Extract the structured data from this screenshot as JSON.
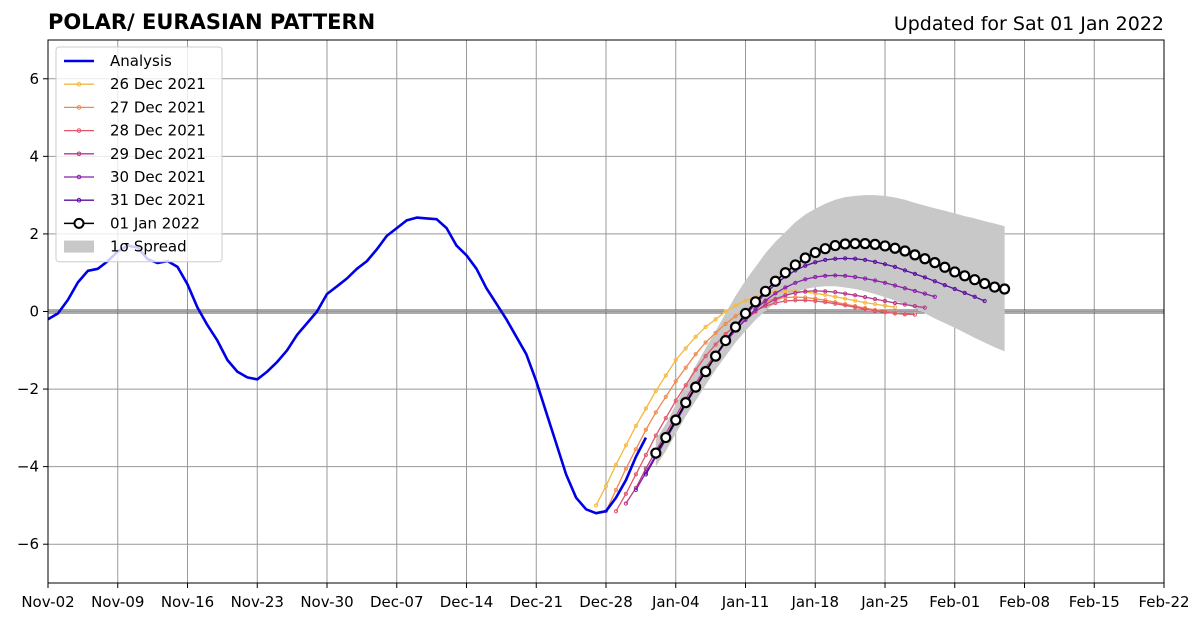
{
  "header": {
    "title": "POLAR/ EURASIAN  PATTERN",
    "updated": "Updated for Sat 01 Jan 2022"
  },
  "colors": {
    "analysis": "#0000e6",
    "spread": "#c8c8c8",
    "dec26": "#f5b940",
    "dec27": "#f08a4b",
    "dec28": "#e0566a",
    "dec29": "#b8378a",
    "dec30": "#8a1fa8",
    "dec31": "#5a0fa0",
    "jan01": "#000000",
    "grid": "#999999",
    "zero_line": "#555555"
  },
  "chart_data": {
    "type": "line",
    "title": "POLAR/ EURASIAN  PATTERN",
    "subtitle": "Updated for Sat 01 Jan 2022",
    "xlabel": "",
    "ylabel": "",
    "x_unit": "days since Nov-02",
    "xlim": [
      0,
      112
    ],
    "ylim": [
      -7,
      7
    ],
    "grid": true,
    "legend_position": "top-left",
    "x_ticks": [
      {
        "label": "Nov-02",
        "x": 0
      },
      {
        "label": "Nov-09",
        "x": 7
      },
      {
        "label": "Nov-16",
        "x": 14
      },
      {
        "label": "Nov-23",
        "x": 21
      },
      {
        "label": "Nov-30",
        "x": 28
      },
      {
        "label": "Dec-07",
        "x": 35
      },
      {
        "label": "Dec-14",
        "x": 42
      },
      {
        "label": "Dec-21",
        "x": 49
      },
      {
        "label": "Dec-28",
        "x": 56
      },
      {
        "label": "Jan-04",
        "x": 63
      },
      {
        "label": "Jan-11",
        "x": 70
      },
      {
        "label": "Jan-18",
        "x": 77
      },
      {
        "label": "Jan-25",
        "x": 84
      },
      {
        "label": "Feb-01",
        "x": 91
      },
      {
        "label": "Feb-08",
        "x": 98
      },
      {
        "label": "Feb-15",
        "x": 105
      },
      {
        "label": "Feb-22",
        "x": 112
      }
    ],
    "y_ticks": [
      {
        "label": "−6",
        "y": -6
      },
      {
        "label": "−4",
        "y": -4
      },
      {
        "label": "−2",
        "y": -2
      },
      {
        "label": "0",
        "y": 0
      },
      {
        "label": "2",
        "y": 2
      },
      {
        "label": "4",
        "y": 4
      },
      {
        "label": "6",
        "y": 6
      }
    ],
    "analysis": {
      "name": "Analysis",
      "x": [
        0,
        1,
        2,
        3,
        4,
        5,
        6,
        7,
        8,
        9,
        10,
        11,
        12,
        13,
        14,
        15,
        16,
        17,
        18,
        19,
        20,
        21,
        22,
        23,
        24,
        25,
        26,
        27,
        28,
        29,
        30,
        31,
        32,
        33,
        34,
        35,
        36,
        37,
        38,
        39,
        40,
        41,
        42,
        43,
        44,
        45,
        46,
        47,
        48,
        49,
        50,
        51,
        52,
        53,
        54,
        55,
        56,
        57,
        58,
        59,
        60
      ],
      "y": [
        -0.2,
        -0.05,
        0.3,
        0.75,
        1.05,
        1.1,
        1.3,
        1.55,
        1.7,
        1.65,
        1.35,
        1.25,
        1.3,
        1.15,
        0.7,
        0.1,
        -0.35,
        -0.75,
        -1.25,
        -1.55,
        -1.7,
        -1.75,
        -1.55,
        -1.3,
        -1.0,
        -0.6,
        -0.3,
        0.0,
        0.45,
        0.65,
        0.85,
        1.1,
        1.3,
        1.6,
        1.95,
        2.15,
        2.35,
        2.42,
        2.4,
        2.38,
        2.15,
        1.7,
        1.45,
        1.1,
        0.6,
        0.2,
        -0.2,
        -0.65,
        -1.1,
        -1.8,
        -2.6,
        -3.4,
        -4.2,
        -4.8,
        -5.1,
        -5.2,
        -5.15,
        -4.8,
        -4.35,
        -3.75,
        -3.25
      ]
    },
    "series": [
      {
        "name": "26 Dec 2021",
        "x_start": 55,
        "values": [
          -5.0,
          -4.5,
          -3.95,
          -3.45,
          -2.95,
          -2.5,
          -2.05,
          -1.65,
          -1.25,
          -0.95,
          -0.65,
          -0.4,
          -0.2,
          0.0,
          0.15,
          0.28,
          0.38,
          0.45,
          0.5,
          0.52,
          0.52,
          0.5,
          0.47,
          0.43,
          0.38,
          0.33,
          0.28,
          0.23,
          0.19,
          0.15,
          0.11
        ]
      },
      {
        "name": "27 Dec 2021",
        "x_start": 56,
        "values": [
          -5.15,
          -4.6,
          -4.05,
          -3.55,
          -3.05,
          -2.6,
          -2.2,
          -1.8,
          -1.45,
          -1.1,
          -0.8,
          -0.55,
          -0.32,
          -0.12,
          0.05,
          0.18,
          0.27,
          0.33,
          0.36,
          0.37,
          0.36,
          0.33,
          0.29,
          0.24,
          0.19,
          0.14,
          0.09,
          0.04,
          0.0,
          -0.04,
          -0.07
        ]
      },
      {
        "name": "28 Dec 2021",
        "x_start": 57,
        "values": [
          -5.15,
          -4.7,
          -4.2,
          -3.7,
          -3.2,
          -2.75,
          -2.3,
          -1.9,
          -1.5,
          -1.15,
          -0.85,
          -0.58,
          -0.35,
          -0.15,
          0.02,
          0.14,
          0.22,
          0.27,
          0.29,
          0.29,
          0.27,
          0.24,
          0.2,
          0.16,
          0.11,
          0.06,
          0.02,
          -0.02,
          -0.05,
          -0.07,
          -0.08
        ]
      },
      {
        "name": "29 Dec 2021",
        "x_start": 58,
        "values": [
          -4.95,
          -4.55,
          -4.05,
          -3.6,
          -3.15,
          -2.7,
          -2.25,
          -1.85,
          -1.45,
          -1.1,
          -0.78,
          -0.48,
          -0.22,
          0.0,
          0.18,
          0.32,
          0.42,
          0.48,
          0.52,
          0.53,
          0.52,
          0.5,
          0.46,
          0.42,
          0.37,
          0.32,
          0.27,
          0.22,
          0.18,
          0.14,
          0.1
        ]
      },
      {
        "name": "30 Dec 2021",
        "x_start": 59,
        "values": [
          -4.6,
          -4.15,
          -3.7,
          -3.25,
          -2.8,
          -2.35,
          -1.92,
          -1.52,
          -1.15,
          -0.8,
          -0.48,
          -0.2,
          0.06,
          0.28,
          0.47,
          0.62,
          0.74,
          0.83,
          0.89,
          0.92,
          0.93,
          0.92,
          0.89,
          0.85,
          0.8,
          0.74,
          0.67,
          0.6,
          0.53,
          0.46,
          0.38
        ]
      },
      {
        "name": "31 Dec 2021",
        "x_start": 60,
        "values": [
          -4.2,
          -3.75,
          -3.3,
          -2.85,
          -2.4,
          -1.97,
          -1.55,
          -1.15,
          -0.78,
          -0.43,
          -0.1,
          0.2,
          0.46,
          0.7,
          0.9,
          1.06,
          1.18,
          1.27,
          1.33,
          1.36,
          1.37,
          1.36,
          1.33,
          1.28,
          1.22,
          1.15,
          1.06,
          0.97,
          0.88,
          0.78,
          0.68,
          0.58,
          0.48,
          0.38,
          0.27
        ]
      },
      {
        "name": "01 Jan 2022",
        "x_start": 61,
        "values": [
          -3.65,
          -3.25,
          -2.8,
          -2.35,
          -1.95,
          -1.55,
          -1.15,
          -0.75,
          -0.4,
          -0.05,
          0.25,
          0.52,
          0.78,
          1.0,
          1.2,
          1.38,
          1.52,
          1.62,
          1.7,
          1.74,
          1.75,
          1.75,
          1.73,
          1.69,
          1.63,
          1.56,
          1.46,
          1.36,
          1.26,
          1.14,
          1.02,
          0.92,
          0.82,
          0.72,
          0.63,
          0.58
        ]
      }
    ],
    "spread": {
      "name": "1σ Spread",
      "x": [
        61,
        62,
        63,
        64,
        65,
        66,
        67,
        68,
        69,
        70,
        71,
        72,
        73,
        74,
        75,
        76,
        77,
        78,
        79,
        80,
        81,
        82,
        83,
        84,
        85,
        86,
        87,
        88,
        89,
        90,
        91,
        92,
        93,
        94,
        95,
        96
      ],
      "upper": [
        -3.3,
        -2.9,
        -2.4,
        -1.9,
        -1.4,
        -0.95,
        -0.5,
        -0.05,
        0.4,
        0.8,
        1.15,
        1.5,
        1.8,
        2.05,
        2.3,
        2.5,
        2.65,
        2.78,
        2.88,
        2.95,
        2.98,
        3.0,
        3.0,
        2.98,
        2.94,
        2.88,
        2.8,
        2.73,
        2.66,
        2.6,
        2.53,
        2.46,
        2.4,
        2.33,
        2.27,
        2.2
      ],
      "lower": [
        -4.0,
        -3.6,
        -3.15,
        -2.7,
        -2.3,
        -1.9,
        -1.5,
        -1.15,
        -0.8,
        -0.5,
        -0.22,
        0.02,
        0.22,
        0.38,
        0.5,
        0.58,
        0.63,
        0.65,
        0.65,
        0.62,
        0.58,
        0.52,
        0.45,
        0.37,
        0.28,
        0.18,
        0.08,
        -0.05,
        -0.18,
        -0.3,
        -0.42,
        -0.55,
        -0.68,
        -0.8,
        -0.92,
        -1.03
      ]
    }
  },
  "legend": {
    "items": [
      {
        "label": "Analysis",
        "key": "analysis"
      },
      {
        "label": "26 Dec 2021",
        "key": "dec26"
      },
      {
        "label": "27 Dec 2021",
        "key": "dec27"
      },
      {
        "label": "28 Dec 2021",
        "key": "dec28"
      },
      {
        "label": "29 Dec 2021",
        "key": "dec29"
      },
      {
        "label": "30 Dec 2021",
        "key": "dec30"
      },
      {
        "label": "31 Dec 2021",
        "key": "dec31"
      },
      {
        "label": "01 Jan 2022",
        "key": "jan01"
      },
      {
        "label": "1σ Spread",
        "key": "spread"
      }
    ]
  }
}
